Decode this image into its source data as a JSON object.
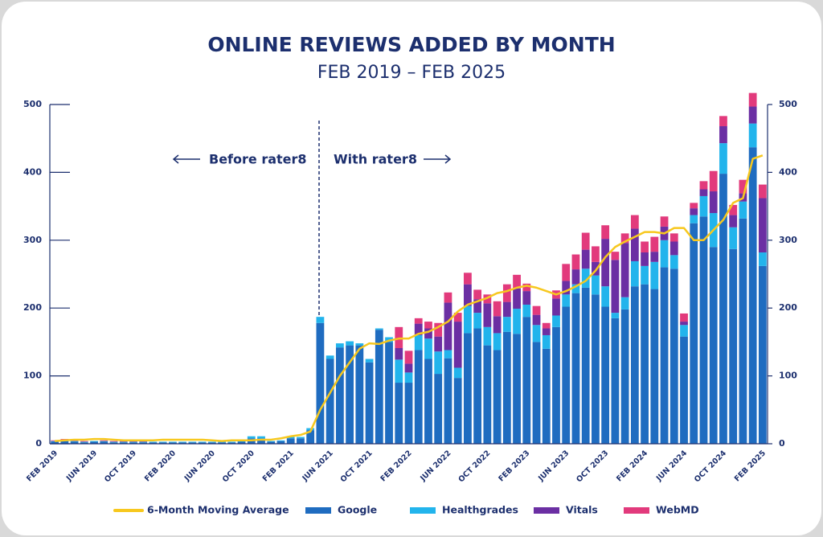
{
  "chart_data": {
    "type": "bar",
    "stacked": true,
    "title": "ONLINE REVIEWS ADDED BY MONTH",
    "subtitle": "FEB 2019 – FEB 2025",
    "annotations": [
      "Before rater8",
      "With rater8"
    ],
    "categories": [
      "FEB 2019",
      null,
      null,
      null,
      "JUN 2019",
      null,
      null,
      null,
      "OCT 2019",
      null,
      null,
      null,
      "FEB 2020",
      null,
      null,
      null,
      "JUN 2020",
      null,
      null,
      null,
      "OCT 2020",
      null,
      null,
      null,
      "FEB 2021",
      null,
      null,
      null,
      "JUN 2021",
      null,
      null,
      null,
      "OCT 2021",
      null,
      null,
      null,
      "FEB 2022",
      null,
      null,
      null,
      "JUN 2022",
      null,
      null,
      null,
      "OCT 2022",
      null,
      null,
      null,
      "FEB 2023",
      null,
      null,
      null,
      "JUN 2023",
      null,
      null,
      null,
      "OCT 2023",
      null,
      null,
      null,
      "FEB 2024",
      null,
      null,
      null,
      "JUN 2024",
      null,
      null,
      null,
      "OCT 2024",
      null,
      null,
      null,
      "FEB 2025"
    ],
    "series": [
      {
        "name": "6-Month Moving Average",
        "type": "line",
        "color": "#f7c81e",
        "values": [
          4,
          5,
          6,
          6,
          7,
          7,
          6,
          5,
          5,
          5,
          5,
          6,
          6,
          6,
          6,
          6,
          5,
          4,
          5,
          5,
          5,
          6,
          6,
          8,
          11,
          13,
          18,
          50,
          75,
          100,
          120,
          140,
          148,
          147,
          152,
          155,
          155,
          162,
          165,
          172,
          180,
          195,
          205,
          210,
          215,
          222,
          225,
          230,
          233,
          230,
          225,
          220,
          225,
          232,
          240,
          255,
          275,
          290,
          298,
          305,
          312,
          312,
          310,
          318,
          318,
          300,
          300,
          315,
          330,
          355,
          362,
          420,
          425
        ]
      },
      {
        "name": "Google",
        "color": "#1f6cc0",
        "values": [
          3,
          4,
          3,
          2,
          3,
          3,
          2,
          2,
          2,
          2,
          2,
          2,
          2,
          2,
          2,
          2,
          2,
          2,
          2,
          3,
          8,
          8,
          3,
          4,
          8,
          8,
          20,
          178,
          125,
          142,
          145,
          145,
          120,
          168,
          150,
          90,
          90,
          138,
          125,
          103,
          126,
          97,
          163,
          170,
          145,
          138,
          165,
          162,
          187,
          150,
          140,
          172,
          202,
          222,
          230,
          220,
          202,
          185,
          198,
          232,
          235,
          228,
          260,
          258,
          158,
          325,
          335,
          290,
          398,
          287,
          332,
          437,
          262
        ]
      },
      {
        "name": "Healthgrades",
        "color": "#22b4ec",
        "values": [
          1,
          1,
          1,
          1,
          1,
          1,
          1,
          1,
          1,
          1,
          1,
          1,
          1,
          1,
          1,
          1,
          1,
          1,
          1,
          1,
          3,
          3,
          1,
          1,
          2,
          2,
          3,
          9,
          5,
          6,
          6,
          3,
          5,
          2,
          7,
          34,
          15,
          22,
          30,
          33,
          12,
          15,
          40,
          23,
          27,
          25,
          22,
          37,
          18,
          25,
          20,
          17,
          18,
          13,
          28,
          28,
          30,
          8,
          18,
          37,
          27,
          40,
          40,
          20,
          17,
          12,
          30,
          50,
          45,
          32,
          25,
          35,
          20
        ]
      },
      {
        "name": "Vitals",
        "color": "#6b2fa3",
        "values": [
          0,
          0,
          0,
          0,
          0,
          0,
          0,
          0,
          0,
          0,
          0,
          0,
          0,
          0,
          0,
          0,
          0,
          0,
          0,
          0,
          0,
          0,
          0,
          0,
          0,
          0,
          0,
          0,
          0,
          0,
          0,
          0,
          0,
          0,
          0,
          17,
          13,
          17,
          15,
          22,
          70,
          68,
          32,
          20,
          35,
          25,
          22,
          30,
          20,
          15,
          10,
          25,
          20,
          22,
          28,
          20,
          70,
          78,
          80,
          48,
          20,
          15,
          20,
          20,
          5,
          10,
          10,
          32,
          25,
          18,
          12,
          25,
          80
        ]
      },
      {
        "name": "WebMD",
        "color": "#e23a7c",
        "values": [
          1,
          2,
          1,
          1,
          0,
          1,
          1,
          1,
          1,
          1,
          0,
          0,
          0,
          0,
          0,
          0,
          0,
          0,
          0,
          0,
          0,
          0,
          0,
          0,
          0,
          0,
          0,
          0,
          0,
          0,
          0,
          0,
          0,
          0,
          0,
          31,
          19,
          8,
          10,
          20,
          15,
          13,
          17,
          14,
          13,
          22,
          26,
          20,
          11,
          13,
          8,
          12,
          25,
          22,
          25,
          23,
          20,
          12,
          14,
          20,
          16,
          22,
          15,
          12,
          12,
          8,
          12,
          30,
          15,
          15,
          20,
          20,
          20
        ]
      }
    ],
    "ylim": [
      0,
      500
    ],
    "yticks": [
      0,
      100,
      200,
      300,
      400,
      500
    ],
    "y2lim": [
      0,
      500
    ],
    "y2ticks": [
      0,
      100,
      200,
      300,
      400,
      500
    ],
    "grid": false
  }
}
